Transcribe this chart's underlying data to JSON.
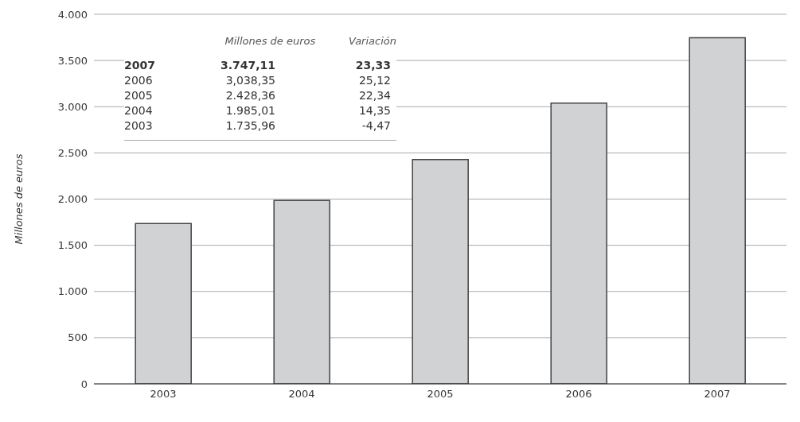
{
  "chart_data": {
    "type": "bar",
    "ylabel": "Millones de euros",
    "categories": [
      "2003",
      "2004",
      "2005",
      "2006",
      "2007"
    ],
    "values": [
      1735.96,
      1985.01,
      2428.36,
      3038.35,
      3747.11
    ],
    "color": "#d1d2d4",
    "annotations": [
      "Millones de euros",
      "Variación",
      "2007",
      "3.747,11",
      "23,33",
      "2006",
      "3,038,35",
      "25,12",
      "2005",
      "2.428,36",
      "22,34",
      "2004",
      "1.985,01",
      "14,35",
      "2003",
      "1.735,96",
      "-4,47"
    ],
    "ylim": [
      0,
      4000
    ],
    "yticks": [
      {
        "value": 0,
        "label": "0"
      },
      {
        "value": 500,
        "label": "500"
      },
      {
        "value": 1000,
        "label": "1.000"
      },
      {
        "value": 1500,
        "label": "1.500"
      },
      {
        "value": 2000,
        "label": "2.000"
      },
      {
        "value": 2500,
        "label": "2.500"
      },
      {
        "value": 3000,
        "label": "3.000"
      },
      {
        "value": 3500,
        "label": "3.500"
      },
      {
        "value": 4000,
        "label": "4.000"
      }
    ],
    "grid": "y",
    "legend": false
  }
}
